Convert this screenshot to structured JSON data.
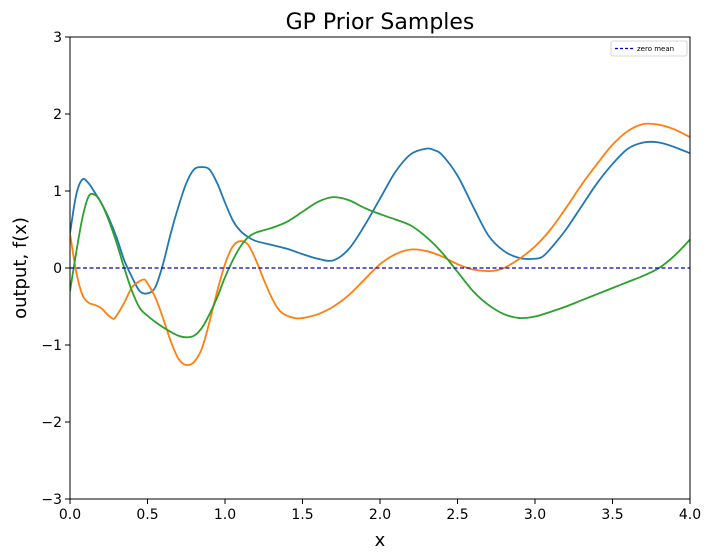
{
  "chart_data": {
    "type": "line",
    "title": "GP Prior Samples",
    "xlabel": "x",
    "ylabel": "output, f(x)",
    "xlim": [
      0.0,
      4.0
    ],
    "ylim": [
      -3,
      3
    ],
    "xticks": [
      "0.0",
      "0.5",
      "1.0",
      "1.5",
      "2.0",
      "2.5",
      "3.0",
      "3.5",
      "4.0"
    ],
    "yticks": [
      "−3",
      "−2",
      "−1",
      "0",
      "1",
      "2",
      "3"
    ],
    "grid": false,
    "legend": {
      "placement": "top-right",
      "entries": [
        "zero mean"
      ]
    },
    "mean_line": {
      "label": "zero mean",
      "y": 0,
      "color": "#0000cc",
      "style": "dashed"
    },
    "series": [
      {
        "color": "#1f77b4",
        "x": [
          0.0,
          0.04,
          0.08,
          0.12,
          0.16,
          0.2,
          0.25,
          0.3,
          0.35,
          0.4,
          0.45,
          0.5,
          0.55,
          0.6,
          0.65,
          0.7,
          0.75,
          0.8,
          0.85,
          0.9,
          0.95,
          1.0,
          1.05,
          1.1,
          1.15,
          1.2,
          1.3,
          1.4,
          1.5,
          1.6,
          1.7,
          1.8,
          1.9,
          2.0,
          2.1,
          2.2,
          2.3,
          2.35,
          2.4,
          2.5,
          2.6,
          2.7,
          2.8,
          2.9,
          3.0,
          3.05,
          3.1,
          3.2,
          3.3,
          3.4,
          3.5,
          3.6,
          3.7,
          3.8,
          3.9,
          4.0
        ],
        "y": [
          0.45,
          0.95,
          1.15,
          1.1,
          0.98,
          0.85,
          0.65,
          0.4,
          0.1,
          -0.12,
          -0.3,
          -0.33,
          -0.25,
          0.05,
          0.45,
          0.8,
          1.1,
          1.28,
          1.31,
          1.28,
          1.1,
          0.85,
          0.62,
          0.48,
          0.4,
          0.35,
          0.3,
          0.25,
          0.18,
          0.12,
          0.1,
          0.25,
          0.55,
          0.9,
          1.25,
          1.48,
          1.55,
          1.53,
          1.47,
          1.2,
          0.8,
          0.42,
          0.22,
          0.13,
          0.12,
          0.15,
          0.25,
          0.5,
          0.8,
          1.1,
          1.35,
          1.55,
          1.63,
          1.63,
          1.57,
          1.49
        ]
      },
      {
        "color": "#ff7f0e",
        "x": [
          0.0,
          0.04,
          0.08,
          0.12,
          0.16,
          0.2,
          0.25,
          0.28,
          0.3,
          0.35,
          0.4,
          0.45,
          0.48,
          0.5,
          0.55,
          0.6,
          0.65,
          0.7,
          0.75,
          0.8,
          0.85,
          0.9,
          0.95,
          1.0,
          1.05,
          1.1,
          1.15,
          1.2,
          1.25,
          1.3,
          1.35,
          1.4,
          1.45,
          1.5,
          1.6,
          1.7,
          1.8,
          1.9,
          2.0,
          2.1,
          2.2,
          2.3,
          2.4,
          2.5,
          2.6,
          2.7,
          2.75,
          2.8,
          2.9,
          3.0,
          3.1,
          3.2,
          3.3,
          3.4,
          3.5,
          3.6,
          3.7,
          3.8,
          3.9,
          4.0
        ],
        "y": [
          0.45,
          -0.05,
          -0.35,
          -0.45,
          -0.48,
          -0.52,
          -0.62,
          -0.66,
          -0.62,
          -0.45,
          -0.25,
          -0.17,
          -0.15,
          -0.2,
          -0.38,
          -0.65,
          -0.95,
          -1.18,
          -1.26,
          -1.22,
          -1.05,
          -0.7,
          -0.3,
          0.05,
          0.28,
          0.35,
          0.3,
          0.1,
          -0.15,
          -0.38,
          -0.55,
          -0.62,
          -0.65,
          -0.65,
          -0.6,
          -0.5,
          -0.35,
          -0.15,
          0.05,
          0.18,
          0.24,
          0.22,
          0.15,
          0.05,
          -0.02,
          -0.04,
          -0.03,
          0.0,
          0.12,
          0.28,
          0.5,
          0.78,
          1.08,
          1.35,
          1.6,
          1.78,
          1.87,
          1.86,
          1.8,
          1.7
        ]
      },
      {
        "color": "#2ca02c",
        "x": [
          0.0,
          0.04,
          0.08,
          0.12,
          0.16,
          0.2,
          0.25,
          0.3,
          0.35,
          0.4,
          0.45,
          0.5,
          0.55,
          0.6,
          0.65,
          0.7,
          0.75,
          0.8,
          0.85,
          0.9,
          0.95,
          1.0,
          1.05,
          1.1,
          1.15,
          1.2,
          1.3,
          1.4,
          1.5,
          1.6,
          1.7,
          1.8,
          1.9,
          2.0,
          2.1,
          2.2,
          2.3,
          2.4,
          2.5,
          2.6,
          2.7,
          2.8,
          2.9,
          3.0,
          3.1,
          3.2,
          3.3,
          3.4,
          3.5,
          3.6,
          3.7,
          3.8,
          3.9,
          4.0
        ],
        "y": [
          -0.3,
          0.2,
          0.65,
          0.93,
          0.95,
          0.85,
          0.62,
          0.33,
          0.0,
          -0.3,
          -0.52,
          -0.62,
          -0.7,
          -0.77,
          -0.83,
          -0.88,
          -0.9,
          -0.88,
          -0.78,
          -0.6,
          -0.38,
          -0.12,
          0.1,
          0.28,
          0.4,
          0.46,
          0.52,
          0.6,
          0.73,
          0.86,
          0.92,
          0.88,
          0.78,
          0.7,
          0.63,
          0.55,
          0.4,
          0.2,
          -0.05,
          -0.3,
          -0.48,
          -0.6,
          -0.65,
          -0.63,
          -0.57,
          -0.5,
          -0.42,
          -0.34,
          -0.26,
          -0.18,
          -0.1,
          0.0,
          0.16,
          0.37
        ]
      }
    ]
  }
}
